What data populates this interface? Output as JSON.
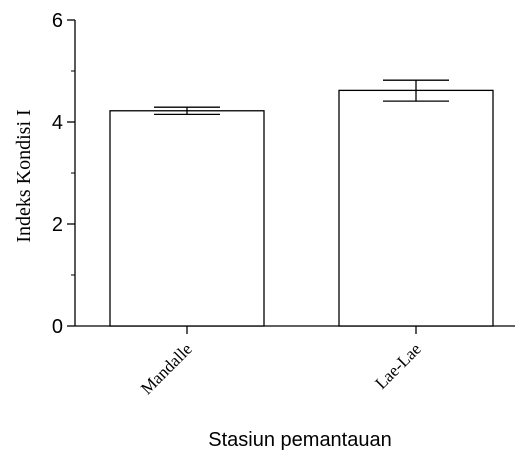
{
  "chart_data": {
    "type": "bar",
    "categories": [
      "Mandalle",
      "Lae-Lae"
    ],
    "values": [
      4.22,
      4.62
    ],
    "error_low": [
      4.15,
      4.41
    ],
    "error_high": [
      4.29,
      4.82
    ],
    "xlabel": "Stasiun pemantauan",
    "ylabel": "Indeks Kondisi I",
    "ylim": [
      0,
      6
    ],
    "yticks": [
      "0",
      "2",
      "4",
      "6"
    ],
    "grid": false,
    "legend": "none",
    "colors": {
      "bar_fill": "#ffffff",
      "stroke": "#000000"
    }
  }
}
